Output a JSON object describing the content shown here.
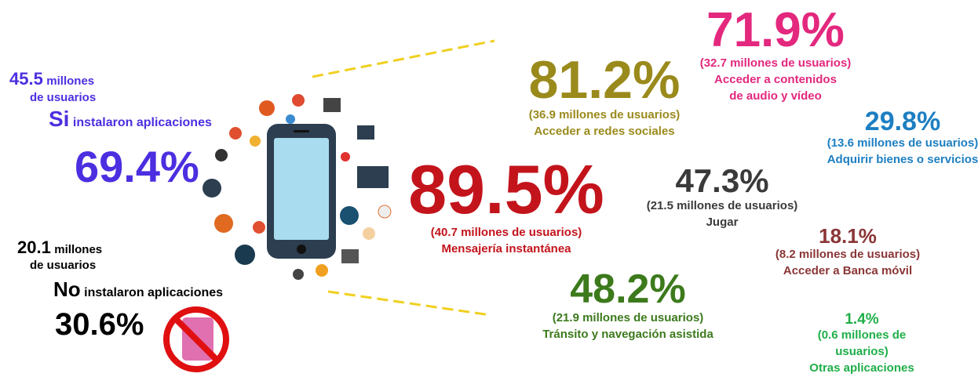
{
  "installed": {
    "users": "45.5",
    "unit_line1": "millones",
    "unit_line2": "de usuarios",
    "answer": "Si",
    "label": "instalaron aplicaciones",
    "percent": "69.4%"
  },
  "not_installed": {
    "users": "20.1",
    "unit_line1": "millones",
    "unit_line2": "de usuarios",
    "answer": "No",
    "label": "instalaron aplicaciones",
    "percent": "30.6%"
  },
  "uses": [
    {
      "percent": "71.9%",
      "lines": [
        "(32.7 millones de usuarios)",
        "Acceder a contenidos",
        "de audio y vídeo"
      ]
    },
    {
      "percent": "81.2%",
      "lines": [
        "(36.9 millones de usuarios)",
        "Acceder a redes sociales"
      ]
    },
    {
      "percent": "29.8%",
      "lines": [
        "(13.6 millones de usuarios)",
        "Adquirir bienes o servicios"
      ]
    },
    {
      "percent": "89.5%",
      "lines": [
        "(40.7 millones de usuarios)",
        "Mensajería instantánea"
      ]
    },
    {
      "percent": "47.3%",
      "lines": [
        "(21.5 millones de usuarios)",
        "Jugar"
      ]
    },
    {
      "percent": "18.1%",
      "lines": [
        "(8.2 millones de usuarios)",
        "Acceder a Banca móvil"
      ]
    },
    {
      "percent": "48.2%",
      "lines": [
        "(21.9 millones de usuarios)",
        "Tránsito y navegación asistida"
      ]
    },
    {
      "percent": "1.4%",
      "lines": [
        "(0.6 millones de",
        "usuarios)",
        "Otras aplicaciones"
      ]
    }
  ]
}
